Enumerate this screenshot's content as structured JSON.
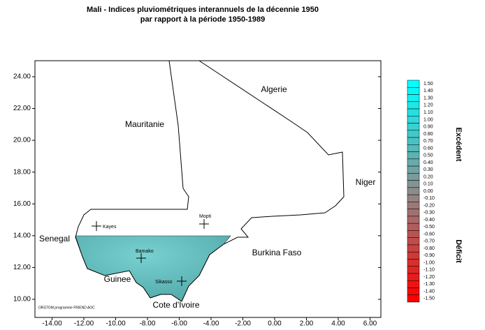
{
  "title_lines": [
    "Mali - Indices pluviométriques interannuels de la décennie 1950",
    "par rapport à la période 1950-1989"
  ],
  "map": {
    "xticks": [
      {
        "value": -14,
        "label": "-14.00"
      },
      {
        "value": -12,
        "label": "-12.00"
      },
      {
        "value": -10,
        "label": "-10.00"
      },
      {
        "value": -8,
        "label": "-8.00"
      },
      {
        "value": -6,
        "label": "-6.00"
      },
      {
        "value": -4,
        "label": "-4.00"
      },
      {
        "value": -2,
        "label": "-2.00"
      },
      {
        "value": 0,
        "label": "0.00"
      },
      {
        "value": 2,
        "label": "2.00"
      },
      {
        "value": 4,
        "label": "4.00"
      },
      {
        "value": 6,
        "label": "6.00"
      }
    ],
    "yticks": [
      {
        "value": 10,
        "label": "10.00"
      },
      {
        "value": 12,
        "label": "12.00"
      },
      {
        "value": 14,
        "label": "14.00"
      },
      {
        "value": 16,
        "label": "16.00"
      },
      {
        "value": 18,
        "label": "18.00"
      },
      {
        "value": 20,
        "label": "20.00"
      },
      {
        "value": 22,
        "label": "22.00"
      },
      {
        "value": 24,
        "label": "24.00"
      }
    ],
    "places": [
      "Algerie",
      "Mauritanie",
      "Niger",
      "Senegal",
      "Burkina Faso",
      "Guinee",
      "Cote d'Ivoire"
    ],
    "cities": [
      "Kayes",
      "Mopti",
      "Bamako",
      "Sikasso"
    ]
  },
  "legend": {
    "ticks": [
      {
        "value": 1.5,
        "label": "1.50"
      },
      {
        "value": 1.4,
        "label": "1.40"
      },
      {
        "value": 1.3,
        "label": "1.30"
      },
      {
        "value": 1.2,
        "label": "1.20"
      },
      {
        "value": 1.1,
        "label": "1.10"
      },
      {
        "value": 1.0,
        "label": "1.00"
      },
      {
        "value": 0.9,
        "label": "0.90"
      },
      {
        "value": 0.8,
        "label": "0.80"
      },
      {
        "value": 0.7,
        "label": "0.70"
      },
      {
        "value": 0.6,
        "label": "0.60"
      },
      {
        "value": 0.5,
        "label": "0.50"
      },
      {
        "value": 0.4,
        "label": "0.40"
      },
      {
        "value": 0.3,
        "label": "0.30"
      },
      {
        "value": 0.2,
        "label": "0.20"
      },
      {
        "value": 0.1,
        "label": "0.10"
      },
      {
        "value": 0,
        "label": "0.00"
      },
      {
        "value": -0.1,
        "label": "-0.10"
      },
      {
        "value": -0.2,
        "label": "-0.20"
      },
      {
        "value": -0.3,
        "label": "-0.30"
      },
      {
        "value": -0.4,
        "label": "-0.40"
      },
      {
        "value": -0.5,
        "label": "-0.50"
      },
      {
        "value": -0.6,
        "label": "-0.60"
      },
      {
        "value": -0.7,
        "label": "-0.70"
      },
      {
        "value": -0.8,
        "label": "-0.80"
      },
      {
        "value": -0.9,
        "label": "-0.90"
      },
      {
        "value": -1.0,
        "label": "-1.00"
      },
      {
        "value": -1.1,
        "label": "-1.10"
      },
      {
        "value": -1.2,
        "label": "-1.20"
      },
      {
        "value": -1.3,
        "label": "-1.30"
      },
      {
        "value": -1.4,
        "label": "-1.40"
      },
      {
        "value": -1.5,
        "label": "-1.50"
      }
    ],
    "labels": [
      "Excédent",
      "Déficit"
    ]
  },
  "credit": "ORSTOM programme FRIEND AOC"
}
